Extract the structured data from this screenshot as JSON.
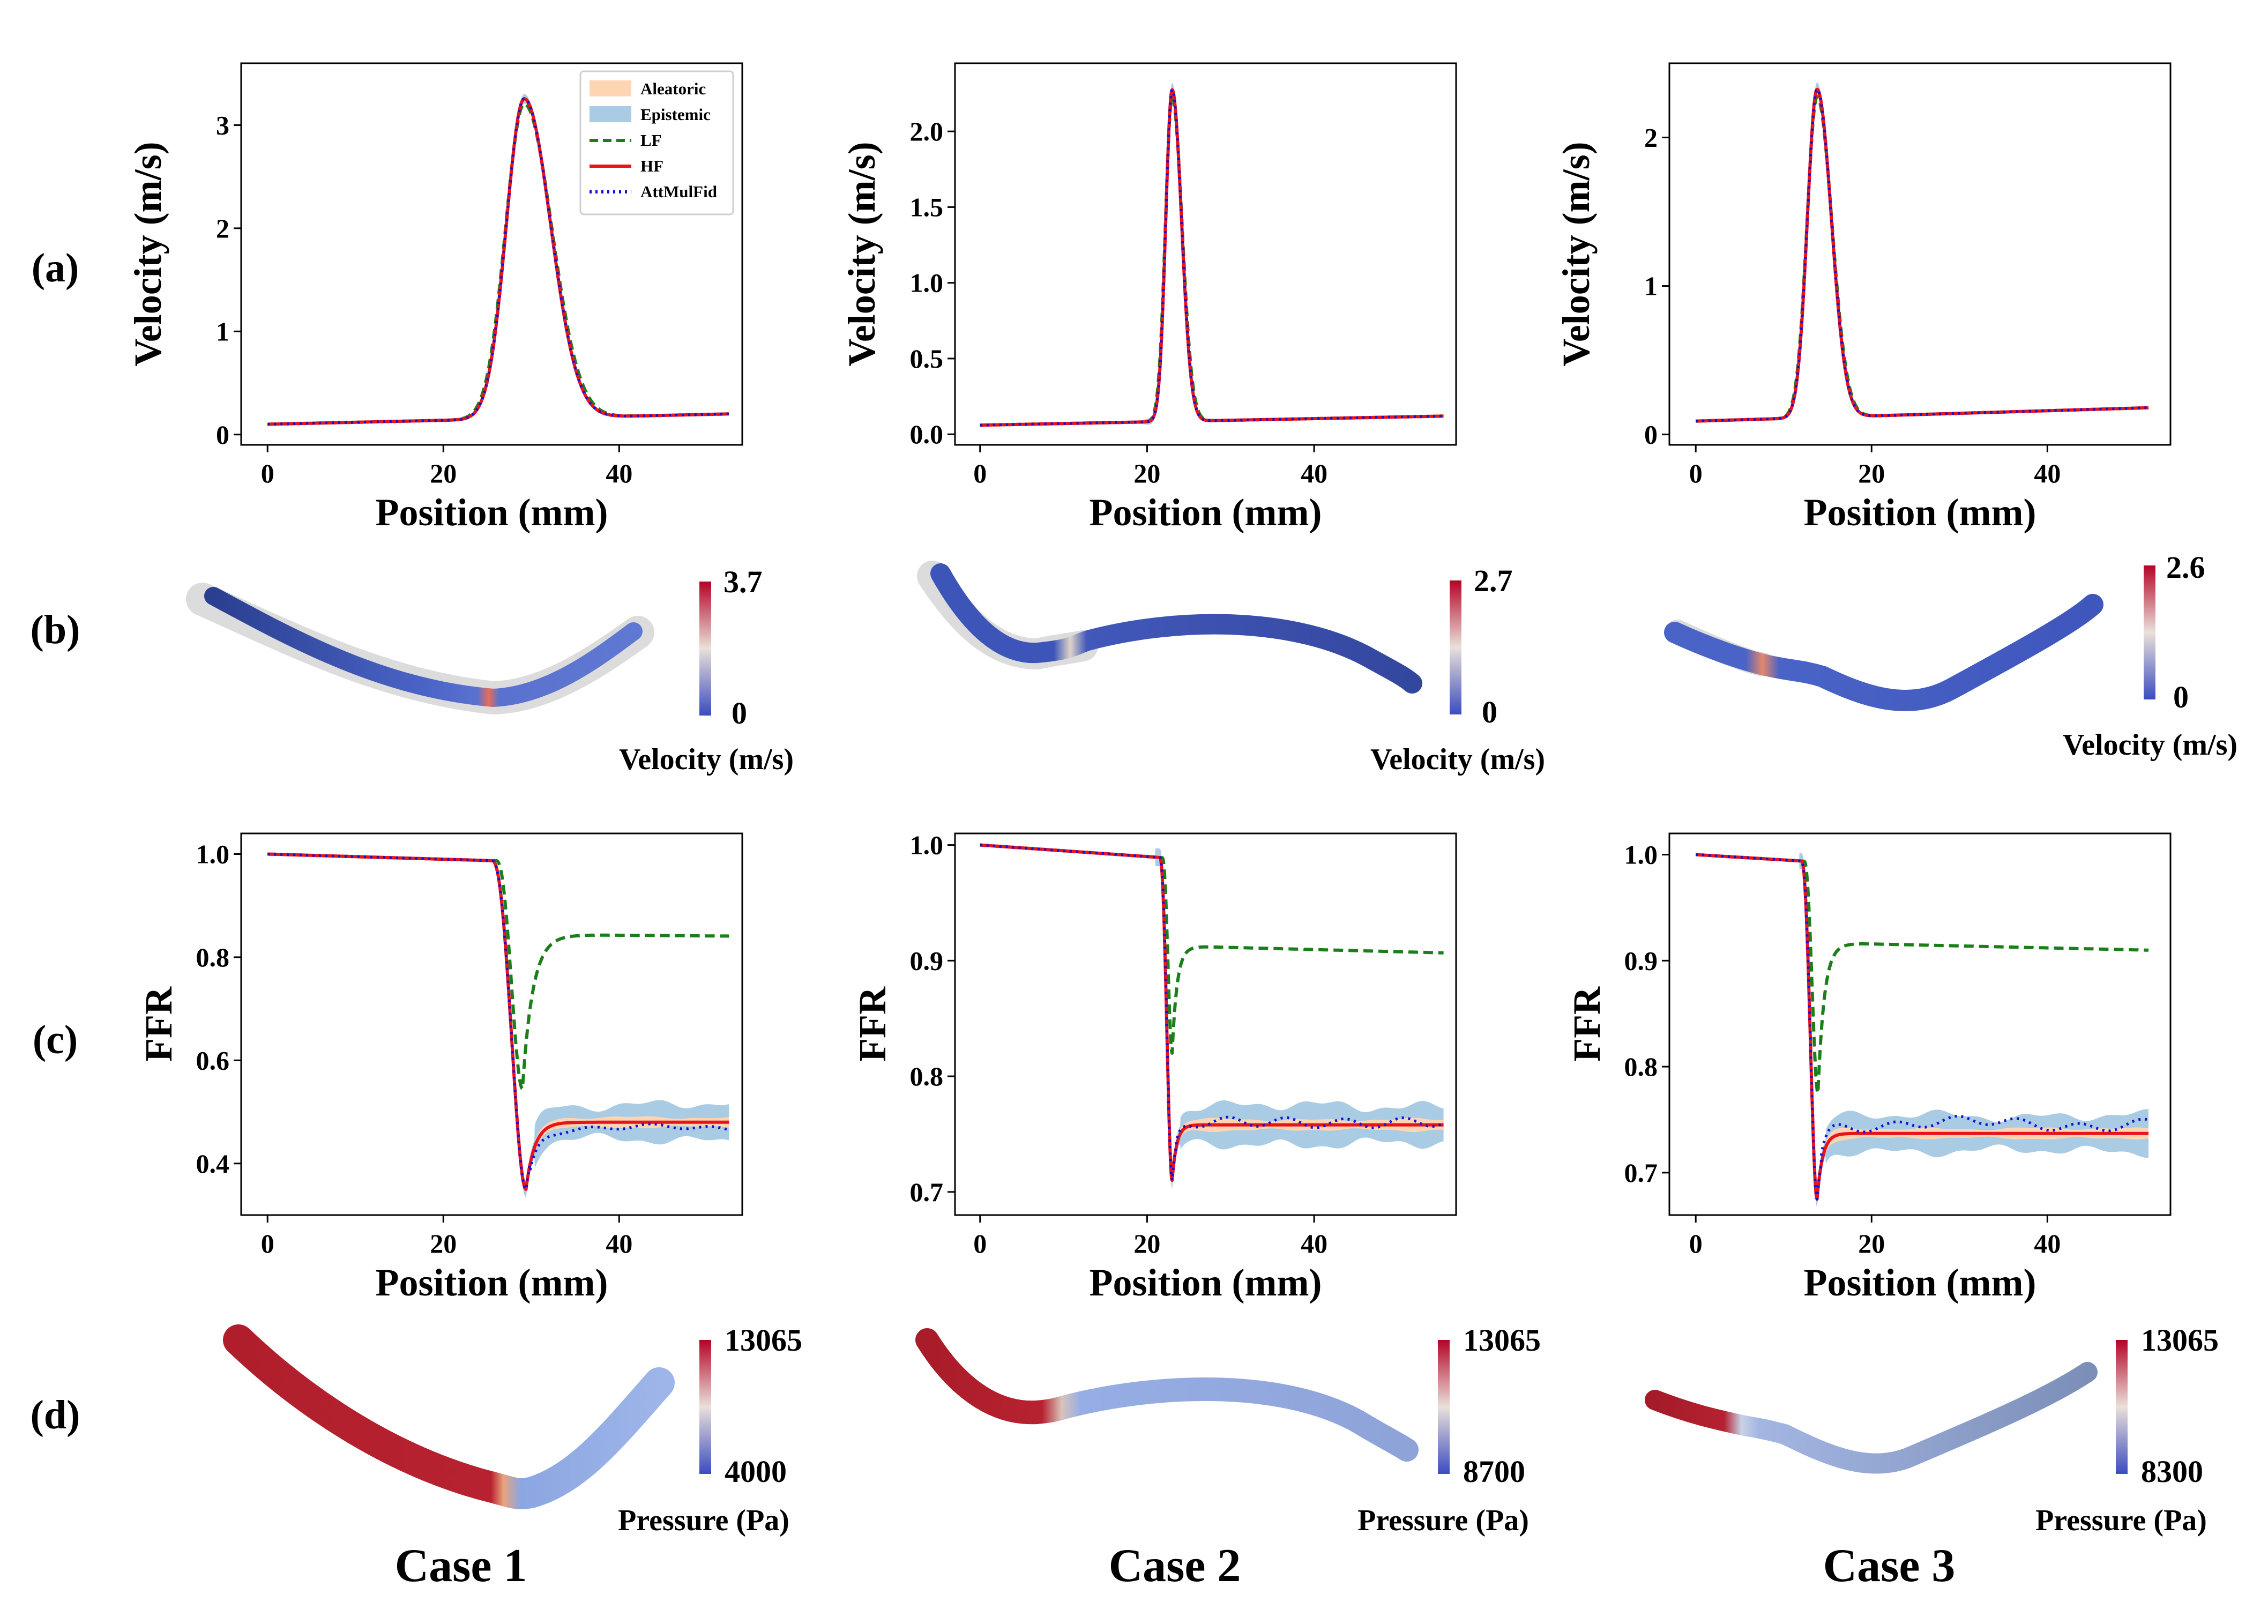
{
  "row_labels": [
    "(a)",
    "(b)",
    "(c)",
    "(d)"
  ],
  "case_labels": [
    "Case 1",
    "Case 2",
    "Case 3"
  ],
  "legend": {
    "aleatoric": "Aleatoric",
    "epistemic": "Epistemic",
    "lf": "LF",
    "hf": "HF",
    "attmulfid": "AttMulFid"
  },
  "colors": {
    "aleatoric": "#fdd5b2",
    "epistemic": "#a9cbe3",
    "lf": "#1a7f1a",
    "hf": "#e8141c",
    "attmulfid": "#1010d8",
    "hot": "#b40426",
    "cold": "#3b4cc0",
    "mid": "#f2e5dc"
  },
  "colorbars": {
    "velocity": [
      {
        "max": "3.7",
        "min": "0",
        "label": "Velocity (m/s)"
      },
      {
        "max": "2.7",
        "min": "0",
        "label": "Velocity (m/s)"
      },
      {
        "max": "2.6",
        "min": "0",
        "label": "Velocity (m/s)"
      }
    ],
    "pressure": [
      {
        "max": "13065",
        "min": "4000",
        "label": "Pressure (Pa)"
      },
      {
        "max": "13065",
        "min": "8700",
        "label": "Pressure (Pa)"
      },
      {
        "max": "13065",
        "min": "8300",
        "label": "Pressure (Pa)"
      }
    ]
  },
  "chart_data": [
    {
      "type": "line",
      "case": "Case 1",
      "quantity": "velocity",
      "xlabel": "Position (mm)",
      "ylabel": "Velocity (m/s)",
      "xlim": [
        -3,
        54
      ],
      "ylim": [
        -0.1,
        3.6
      ],
      "xticks": [
        0,
        20,
        40
      ],
      "xtick_labels": [
        "0",
        "20",
        "40"
      ],
      "yticks": [
        0,
        1,
        2,
        3
      ],
      "ytick_labels": [
        "0",
        "1",
        "2",
        "3"
      ],
      "x_end": 52.5,
      "shape": {
        "kind": "peak",
        "base": 0.1,
        "end": 0.2,
        "peak_x": 29.2,
        "peak_y": 3.2,
        "width": 2.4
      },
      "lf_shape": {
        "kind": "peak",
        "base": 0.1,
        "end": 0.2,
        "peak_x": 29.2,
        "peak_y": 3.15,
        "width": 2.5
      },
      "attmulfid_offset": 0.0,
      "legend": true
    },
    {
      "type": "line",
      "case": "Case 2",
      "quantity": "velocity",
      "xlabel": "Position (mm)",
      "ylabel": "Velocity (m/s)",
      "xlim": [
        -3,
        57
      ],
      "ylim": [
        -0.07,
        2.45
      ],
      "xticks": [
        0,
        20,
        40
      ],
      "xtick_labels": [
        "0",
        "20",
        "40"
      ],
      "yticks": [
        0,
        0.5,
        1.0,
        1.5,
        2.0
      ],
      "ytick_labels": [
        "0.0",
        "0.5",
        "1.0",
        "1.5",
        "2.0"
      ],
      "x_end": 55.5,
      "shape": {
        "kind": "peak",
        "base": 0.06,
        "end": 0.12,
        "peak_x": 23.0,
        "peak_y": 2.25,
        "width": 0.9
      },
      "lf_shape": {
        "kind": "peak",
        "base": 0.06,
        "end": 0.12,
        "peak_x": 23.0,
        "peak_y": 2.2,
        "width": 0.95
      },
      "attmulfid_offset": 0.0,
      "legend": false
    },
    {
      "type": "line",
      "case": "Case 3",
      "quantity": "velocity",
      "xlabel": "Position (mm)",
      "ylabel": "Velocity (m/s)",
      "xlim": [
        -3,
        54
      ],
      "ylim": [
        -0.07,
        2.5
      ],
      "xticks": [
        0,
        20,
        40
      ],
      "xtick_labels": [
        "0",
        "20",
        "40"
      ],
      "yticks": [
        0,
        1,
        2
      ],
      "ytick_labels": [
        "0",
        "1",
        "2"
      ],
      "x_end": 51.5,
      "shape": {
        "kind": "peak",
        "base": 0.09,
        "end": 0.18,
        "peak_x": 13.8,
        "peak_y": 2.3,
        "width": 1.3
      },
      "lf_shape": {
        "kind": "peak",
        "base": 0.09,
        "end": 0.18,
        "peak_x": 13.8,
        "peak_y": 2.25,
        "width": 1.35
      },
      "attmulfid_offset": 0.0,
      "legend": false
    },
    {
      "type": "line",
      "case": "Case 1",
      "quantity": "FFR",
      "xlabel": "Position (mm)",
      "ylabel": "FFR",
      "xlim": [
        -3,
        54
      ],
      "ylim": [
        0.3,
        1.04
      ],
      "xticks": [
        0,
        20,
        40
      ],
      "xtick_labels": [
        "0",
        "20",
        "40"
      ],
      "yticks": [
        0.4,
        0.6,
        0.8,
        1.0
      ],
      "ytick_labels": [
        "0.4",
        "0.6",
        "0.8",
        "1.0"
      ],
      "x_end": 52.5,
      "shape": {
        "kind": "drop",
        "x_start": 25.5,
        "x_min": 29.4,
        "y_min": 0.35,
        "plateau": 0.48,
        "recover": 2.2
      },
      "lf_shape": {
        "kind": "drop",
        "x_start": 26.0,
        "x_min": 29.0,
        "y_min": 0.545,
        "plateau": 0.843,
        "recover": 2.6,
        "end": 0.84
      },
      "band": {
        "epistemic": 0.045,
        "aleatoric": 0.012
      },
      "attmulfid_offset": -0.012,
      "legend": false
    },
    {
      "type": "line",
      "case": "Case 2",
      "quantity": "FFR",
      "xlabel": "Position (mm)",
      "ylabel": "FFR",
      "xlim": [
        -3,
        57
      ],
      "ylim": [
        0.68,
        1.01
      ],
      "xticks": [
        0,
        20,
        40
      ],
      "xtick_labels": [
        "0",
        "20",
        "40"
      ],
      "yticks": [
        0.7,
        0.8,
        0.9,
        1.0
      ],
      "ytick_labels": [
        "0.7",
        "0.8",
        "0.9",
        "1.0"
      ],
      "x_end": 55.5,
      "shape": {
        "kind": "drop",
        "x_start": 21.5,
        "x_min": 23.0,
        "y_min": 0.71,
        "plateau": 0.758,
        "recover": 1.2
      },
      "lf_shape": {
        "kind": "drop",
        "x_start": 21.8,
        "x_min": 23.0,
        "y_min": 0.82,
        "plateau": 0.912,
        "recover": 1.3,
        "end": 0.906
      },
      "band": {
        "epistemic": 0.022,
        "aleatoric": 0.006
      },
      "attmulfid_offset": 0.002,
      "legend": false
    },
    {
      "type": "line",
      "case": "Case 3",
      "quantity": "FFR",
      "xlabel": "Position (mm)",
      "ylabel": "FFR",
      "xlim": [
        -3,
        54
      ],
      "ylim": [
        0.66,
        1.02
      ],
      "xticks": [
        0,
        20,
        40
      ],
      "xtick_labels": [
        "0",
        "20",
        "40"
      ],
      "yticks": [
        0.7,
        0.8,
        0.9,
        1.0
      ],
      "ytick_labels": [
        "0.7",
        "0.8",
        "0.9",
        "1.0"
      ],
      "x_end": 51.5,
      "shape": {
        "kind": "drop",
        "x_start": 12.0,
        "x_min": 13.8,
        "y_min": 0.675,
        "plateau": 0.737,
        "recover": 1.4
      },
      "lf_shape": {
        "kind": "drop",
        "x_start": 12.3,
        "x_min": 13.9,
        "y_min": 0.775,
        "plateau": 0.916,
        "recover": 1.6,
        "end": 0.909
      },
      "band": {
        "epistemic": 0.022,
        "aleatoric": 0.006
      },
      "attmulfid_offset": 0.009,
      "legend": false
    }
  ]
}
